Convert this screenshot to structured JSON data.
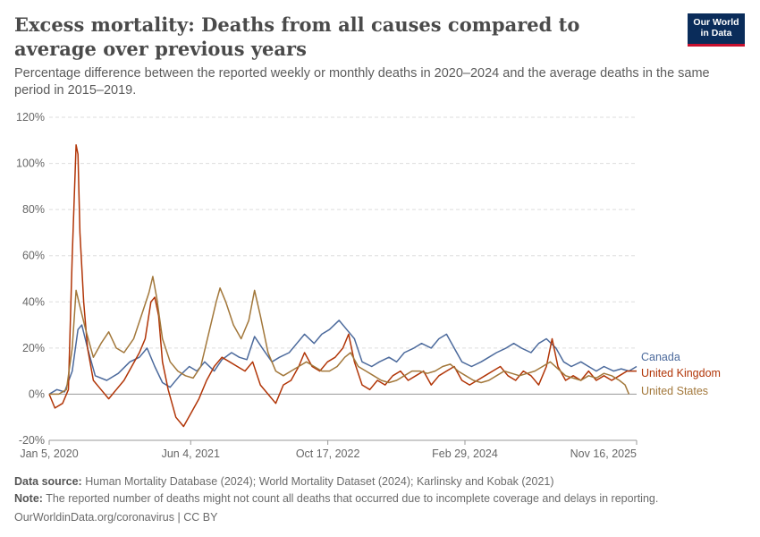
{
  "header": {
    "title": "Excess mortality: Deaths from all causes compared to average over previous years",
    "subtitle": "Percentage difference between the reported weekly or monthly deaths in 2020–2024 and the average deaths in the same period in 2015–2019."
  },
  "logo": {
    "line1": "Our World",
    "line2": "in Data"
  },
  "footer": {
    "source_label": "Data source:",
    "source_text": "Human Mortality Database (2024); World Mortality Dataset (2024); Karlinsky and Kobak (2021)",
    "note_label": "Note:",
    "note_text": "The reported number of deaths might not count all deaths that occurred due to incomplete coverage and delays in reporting.",
    "credit": "OurWorldinData.org/coronavirus | CC BY"
  },
  "chart_data": {
    "type": "line",
    "yticks": [
      "-20%",
      "0%",
      "20%",
      "40%",
      "60%",
      "80%",
      "100%",
      "120%"
    ],
    "ytick_values": [
      -20,
      0,
      20,
      40,
      60,
      80,
      100,
      120
    ],
    "ylim": [
      -20,
      120
    ],
    "xticks": [
      "Jan 5, 2020",
      "Jun 4, 2021",
      "Oct 17, 2022",
      "Feb 29, 2024",
      "Nov 16, 2025"
    ],
    "xtick_dates": [
      "2020-01-05",
      "2021-06-04",
      "2022-10-17",
      "2024-02-29",
      "2025-11-16"
    ],
    "xlim": [
      "2020-01-05",
      "2025-11-16"
    ],
    "grid": true,
    "legend": "right",
    "series": [
      {
        "name": "Canada",
        "color": "#4c6a9c",
        "points": [
          [
            "2020-01-05",
            0
          ],
          [
            "2020-02-02",
            2
          ],
          [
            "2020-03-01",
            1
          ],
          [
            "2020-03-29",
            10
          ],
          [
            "2020-04-19",
            28
          ],
          [
            "2020-05-03",
            30
          ],
          [
            "2020-05-24",
            20
          ],
          [
            "2020-06-21",
            8
          ],
          [
            "2020-08-02",
            6
          ],
          [
            "2020-09-13",
            9
          ],
          [
            "2020-10-25",
            14
          ],
          [
            "2020-11-29",
            16
          ],
          [
            "2020-12-27",
            20
          ],
          [
            "2021-01-24",
            12
          ],
          [
            "2021-02-21",
            5
          ],
          [
            "2021-03-21",
            3
          ],
          [
            "2021-04-25",
            8
          ],
          [
            "2021-05-30",
            12
          ],
          [
            "2021-06-27",
            10
          ],
          [
            "2021-07-25",
            14
          ],
          [
            "2021-08-29",
            10
          ],
          [
            "2021-09-26",
            15
          ],
          [
            "2021-10-31",
            18
          ],
          [
            "2021-11-28",
            16
          ],
          [
            "2021-12-26",
            15
          ],
          [
            "2022-01-23",
            25
          ],
          [
            "2022-02-20",
            20
          ],
          [
            "2022-03-27",
            14
          ],
          [
            "2022-04-24",
            16
          ],
          [
            "2022-05-29",
            18
          ],
          [
            "2022-06-26",
            22
          ],
          [
            "2022-07-24",
            26
          ],
          [
            "2022-08-28",
            22
          ],
          [
            "2022-09-25",
            26
          ],
          [
            "2022-10-23",
            28
          ],
          [
            "2022-11-27",
            32
          ],
          [
            "2022-12-25",
            28
          ],
          [
            "2023-01-22",
            24
          ],
          [
            "2023-02-19",
            14
          ],
          [
            "2023-03-26",
            12
          ],
          [
            "2023-04-23",
            14
          ],
          [
            "2023-05-28",
            16
          ],
          [
            "2023-06-25",
            14
          ],
          [
            "2023-07-23",
            18
          ],
          [
            "2023-08-27",
            20
          ],
          [
            "2023-09-24",
            22
          ],
          [
            "2023-10-29",
            20
          ],
          [
            "2023-11-26",
            24
          ],
          [
            "2023-12-24",
            26
          ],
          [
            "2024-01-21",
            20
          ],
          [
            "2024-02-18",
            14
          ],
          [
            "2024-03-24",
            12
          ],
          [
            "2024-04-28",
            14
          ],
          [
            "2024-05-26",
            16
          ],
          [
            "2024-06-23",
            18
          ],
          [
            "2024-07-28",
            20
          ],
          [
            "2024-08-25",
            22
          ],
          [
            "2024-09-22",
            20
          ],
          [
            "2024-10-27",
            18
          ],
          [
            "2024-11-24",
            22
          ],
          [
            "2024-12-22",
            24
          ],
          [
            "2025-01-26",
            20
          ],
          [
            "2025-02-23",
            14
          ],
          [
            "2025-03-23",
            12
          ],
          [
            "2025-04-27",
            14
          ],
          [
            "2025-05-25",
            12
          ],
          [
            "2025-06-22",
            10
          ],
          [
            "2025-07-20",
            12
          ],
          [
            "2025-08-24",
            10
          ],
          [
            "2025-09-21",
            11
          ],
          [
            "2025-10-19",
            10
          ],
          [
            "2025-11-16",
            12
          ]
        ]
      },
      {
        "name": "United Kingdom",
        "color": "#b13507",
        "points": [
          [
            "2020-01-05",
            0
          ],
          [
            "2020-01-26",
            -6
          ],
          [
            "2020-02-23",
            -4
          ],
          [
            "2020-03-15",
            2
          ],
          [
            "2020-03-29",
            60
          ],
          [
            "2020-04-12",
            108
          ],
          [
            "2020-04-19",
            104
          ],
          [
            "2020-04-26",
            70
          ],
          [
            "2020-05-10",
            40
          ],
          [
            "2020-05-24",
            20
          ],
          [
            "2020-06-14",
            6
          ],
          [
            "2020-07-12",
            2
          ],
          [
            "2020-08-09",
            -2
          ],
          [
            "2020-09-06",
            2
          ],
          [
            "2020-10-04",
            6
          ],
          [
            "2020-11-01",
            12
          ],
          [
            "2020-11-29",
            18
          ],
          [
            "2020-12-20",
            24
          ],
          [
            "2021-01-10",
            40
          ],
          [
            "2021-01-24",
            42
          ],
          [
            "2021-02-07",
            34
          ],
          [
            "2021-02-21",
            14
          ],
          [
            "2021-03-14",
            2
          ],
          [
            "2021-04-11",
            -10
          ],
          [
            "2021-05-09",
            -14
          ],
          [
            "2021-06-06",
            -8
          ],
          [
            "2021-07-04",
            -2
          ],
          [
            "2021-08-01",
            6
          ],
          [
            "2021-08-29",
            12
          ],
          [
            "2021-09-26",
            16
          ],
          [
            "2021-10-24",
            14
          ],
          [
            "2021-11-21",
            12
          ],
          [
            "2021-12-19",
            10
          ],
          [
            "2022-01-16",
            14
          ],
          [
            "2022-02-13",
            4
          ],
          [
            "2022-03-13",
            0
          ],
          [
            "2022-04-10",
            -4
          ],
          [
            "2022-05-08",
            4
          ],
          [
            "2022-06-05",
            6
          ],
          [
            "2022-07-03",
            12
          ],
          [
            "2022-07-24",
            18
          ],
          [
            "2022-08-21",
            12
          ],
          [
            "2022-09-18",
            10
          ],
          [
            "2022-10-16",
            14
          ],
          [
            "2022-11-13",
            16
          ],
          [
            "2022-12-11",
            20
          ],
          [
            "2023-01-01",
            26
          ],
          [
            "2023-01-22",
            14
          ],
          [
            "2023-02-19",
            4
          ],
          [
            "2023-03-19",
            2
          ],
          [
            "2023-04-16",
            6
          ],
          [
            "2023-05-14",
            4
          ],
          [
            "2023-06-11",
            8
          ],
          [
            "2023-07-09",
            10
          ],
          [
            "2023-08-06",
            6
          ],
          [
            "2023-09-03",
            8
          ],
          [
            "2023-10-01",
            10
          ],
          [
            "2023-10-29",
            4
          ],
          [
            "2023-11-26",
            8
          ],
          [
            "2023-12-24",
            10
          ],
          [
            "2024-01-21",
            12
          ],
          [
            "2024-02-18",
            6
          ],
          [
            "2024-03-17",
            4
          ],
          [
            "2024-04-14",
            6
          ],
          [
            "2024-05-12",
            8
          ],
          [
            "2024-06-09",
            10
          ],
          [
            "2024-07-07",
            12
          ],
          [
            "2024-08-04",
            8
          ],
          [
            "2024-09-01",
            6
          ],
          [
            "2024-09-29",
            10
          ],
          [
            "2024-10-27",
            8
          ],
          [
            "2024-11-24",
            4
          ],
          [
            "2024-12-22",
            12
          ],
          [
            "2025-01-12",
            24
          ],
          [
            "2025-02-02",
            12
          ],
          [
            "2025-03-02",
            6
          ],
          [
            "2025-03-30",
            8
          ],
          [
            "2025-04-27",
            6
          ],
          [
            "2025-05-25",
            10
          ],
          [
            "2025-06-22",
            6
          ],
          [
            "2025-07-20",
            8
          ],
          [
            "2025-08-17",
            6
          ],
          [
            "2025-09-14",
            8
          ],
          [
            "2025-10-12",
            10
          ],
          [
            "2025-11-16",
            10
          ]
        ]
      },
      {
        "name": "United States",
        "color": "#a2773a",
        "points": [
          [
            "2020-01-05",
            0
          ],
          [
            "2020-02-09",
            0
          ],
          [
            "2020-03-08",
            2
          ],
          [
            "2020-03-29",
            20
          ],
          [
            "2020-04-12",
            45
          ],
          [
            "2020-04-26",
            38
          ],
          [
            "2020-05-17",
            28
          ],
          [
            "2020-06-14",
            16
          ],
          [
            "2020-07-12",
            22
          ],
          [
            "2020-08-09",
            27
          ],
          [
            "2020-09-06",
            20
          ],
          [
            "2020-10-04",
            18
          ],
          [
            "2020-11-08",
            24
          ],
          [
            "2020-12-06",
            34
          ],
          [
            "2021-01-03",
            44
          ],
          [
            "2021-01-17",
            51
          ],
          [
            "2021-01-31",
            42
          ],
          [
            "2021-02-21",
            24
          ],
          [
            "2021-03-21",
            14
          ],
          [
            "2021-04-18",
            10
          ],
          [
            "2021-05-16",
            8
          ],
          [
            "2021-06-13",
            7
          ],
          [
            "2021-07-11",
            12
          ],
          [
            "2021-08-08",
            26
          ],
          [
            "2021-09-05",
            40
          ],
          [
            "2021-09-19",
            46
          ],
          [
            "2021-10-10",
            40
          ],
          [
            "2021-11-07",
            30
          ],
          [
            "2021-12-05",
            24
          ],
          [
            "2022-01-02",
            32
          ],
          [
            "2022-01-23",
            45
          ],
          [
            "2022-02-13",
            34
          ],
          [
            "2022-03-13",
            18
          ],
          [
            "2022-04-10",
            10
          ],
          [
            "2022-05-08",
            8
          ],
          [
            "2022-06-05",
            10
          ],
          [
            "2022-07-03",
            12
          ],
          [
            "2022-07-31",
            14
          ],
          [
            "2022-08-28",
            12
          ],
          [
            "2022-09-25",
            10
          ],
          [
            "2022-10-23",
            10
          ],
          [
            "2022-11-20",
            12
          ],
          [
            "2022-12-18",
            16
          ],
          [
            "2023-01-08",
            18
          ],
          [
            "2023-02-05",
            12
          ],
          [
            "2023-03-05",
            10
          ],
          [
            "2023-04-02",
            8
          ],
          [
            "2023-04-30",
            6
          ],
          [
            "2023-05-28",
            5
          ],
          [
            "2023-06-25",
            6
          ],
          [
            "2023-07-23",
            8
          ],
          [
            "2023-08-20",
            10
          ],
          [
            "2023-09-17",
            10
          ],
          [
            "2023-10-15",
            9
          ],
          [
            "2023-11-12",
            10
          ],
          [
            "2023-12-10",
            12
          ],
          [
            "2024-01-07",
            13
          ],
          [
            "2024-02-04",
            10
          ],
          [
            "2024-03-03",
            8
          ],
          [
            "2024-03-31",
            6
          ],
          [
            "2024-04-28",
            5
          ],
          [
            "2024-05-26",
            6
          ],
          [
            "2024-06-23",
            8
          ],
          [
            "2024-07-21",
            10
          ],
          [
            "2024-08-18",
            9
          ],
          [
            "2024-09-15",
            8
          ],
          [
            "2024-10-13",
            9
          ],
          [
            "2024-11-10",
            10
          ],
          [
            "2024-12-08",
            12
          ],
          [
            "2025-01-05",
            14
          ],
          [
            "2025-02-02",
            11
          ],
          [
            "2025-03-02",
            8
          ],
          [
            "2025-03-30",
            7
          ],
          [
            "2025-04-27",
            6
          ],
          [
            "2025-05-25",
            8
          ],
          [
            "2025-06-22",
            7
          ],
          [
            "2025-07-20",
            9
          ],
          [
            "2025-08-17",
            8
          ],
          [
            "2025-09-14",
            6
          ],
          [
            "2025-10-05",
            4
          ],
          [
            "2025-10-19",
            0
          ]
        ]
      }
    ]
  }
}
